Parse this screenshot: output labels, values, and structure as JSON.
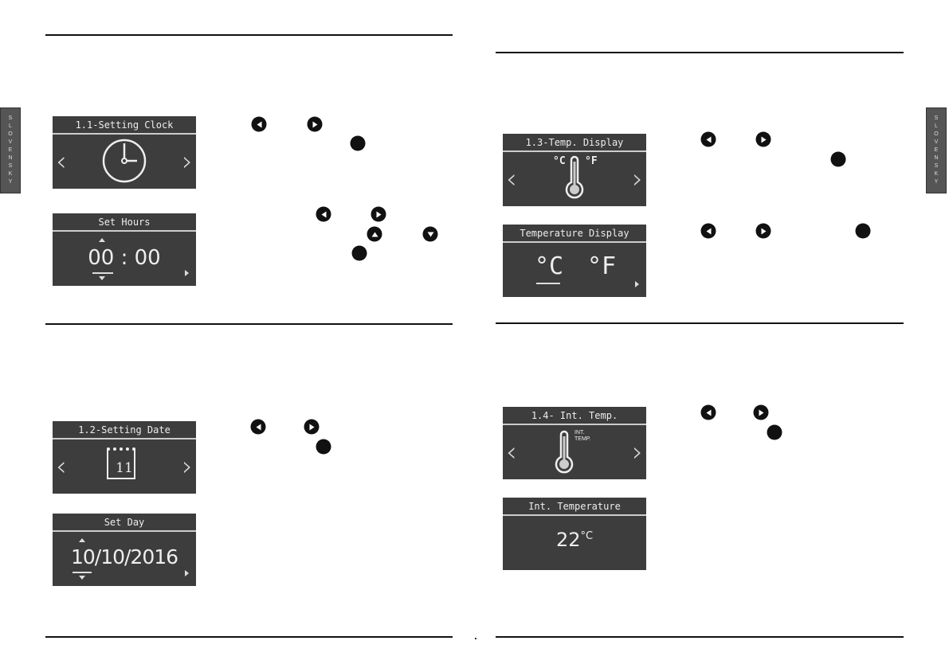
{
  "side_tab": {
    "label": "SLOVENSKY",
    "letters": [
      "S",
      "L",
      "O",
      "V",
      "E",
      "N",
      "S",
      "K",
      "Y"
    ]
  },
  "panels": {
    "setting_clock": {
      "title": "1.1-Setting Clock",
      "icon": "clock-icon"
    },
    "set_hours": {
      "title": "Set Hours",
      "value": "00 : 00"
    },
    "setting_date": {
      "title": "1.2-Setting Date",
      "day": "11",
      "icon": "calendar-icon"
    },
    "set_day": {
      "title": "Set Day",
      "value": "10/10/2016"
    },
    "temp_display": {
      "title": "1.3-Temp. Display",
      "unit_c": "°C",
      "unit_f": "°F",
      "icon": "thermometer-icon"
    },
    "temperature_display": {
      "title": "Temperature Display",
      "unit_c": "°C",
      "unit_f": "°F",
      "selected": "°C"
    },
    "int_temp": {
      "title": "1.4- Int. Temp.",
      "label": "INT. TEMP.",
      "icon": "thermometer-icon"
    },
    "int_temperature": {
      "title": "Int. Temperature",
      "value": "22",
      "unit": "°C"
    }
  },
  "colors": {
    "panel_bg": "#3d3d3d",
    "panel_text": "#eeeeee",
    "button": "#111111"
  }
}
